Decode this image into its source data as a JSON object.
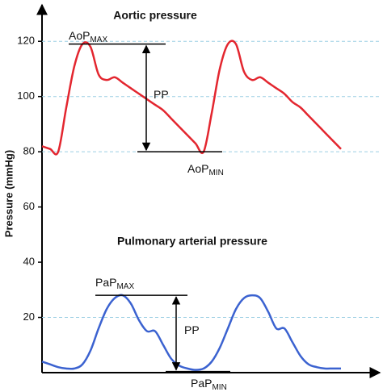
{
  "chart_data": {
    "type": "line",
    "title": "Aortic pressure",
    "subtitle": "Pulmonary arterial pressure",
    "y_label": "Pressure (mmHg)",
    "categories": [
      null,
      null,
      null,
      null,
      null,
      null,
      null,
      null,
      null,
      null,
      null,
      null,
      null,
      null,
      null,
      null,
      null,
      null,
      null,
      null,
      null,
      null,
      null,
      null,
      null,
      null,
      null,
      null,
      null,
      null,
      null,
      null,
      null,
      null,
      null,
      null,
      null,
      null
    ],
    "series": [
      {
        "color": "#e3262f",
        "values": [
          82,
          81,
          80,
          96,
          111,
          119,
          118,
          108,
          106,
          107,
          105,
          103,
          101,
          99,
          97,
          95,
          92,
          89,
          86,
          83,
          80,
          94,
          110,
          119,
          119,
          109,
          106,
          107,
          105,
          103,
          101,
          98,
          96,
          93,
          90,
          87,
          84,
          81
        ]
      },
      {
        "color": "#3b62d0",
        "values": [
          4,
          3,
          2,
          1.5,
          1.5,
          3,
          8,
          16,
          23,
          27,
          28,
          25,
          19,
          15,
          15,
          10,
          5,
          2.5,
          1.5,
          1,
          1.5,
          4,
          9,
          16,
          23,
          27,
          28,
          27,
          22,
          16,
          16,
          11,
          6,
          3,
          2,
          1.5,
          1.5,
          1.5
        ]
      }
    ],
    "ylim": [
      0,
      130
    ],
    "yticks": [
      20,
      40,
      60,
      80,
      100,
      120
    ],
    "grid": [
      20,
      80,
      100,
      120
    ],
    "grid_color": "#9ccfe3",
    "annotations": [
      {
        "text": "AoP",
        "sub": "MAX"
      },
      {
        "text": "PP"
      },
      {
        "text": "AoP",
        "sub": "MIN"
      },
      {
        "text": "PaP",
        "sub": "MAX"
      },
      {
        "text": "PP"
      },
      {
        "text": "PaP",
        "sub": "MIN"
      }
    ]
  }
}
